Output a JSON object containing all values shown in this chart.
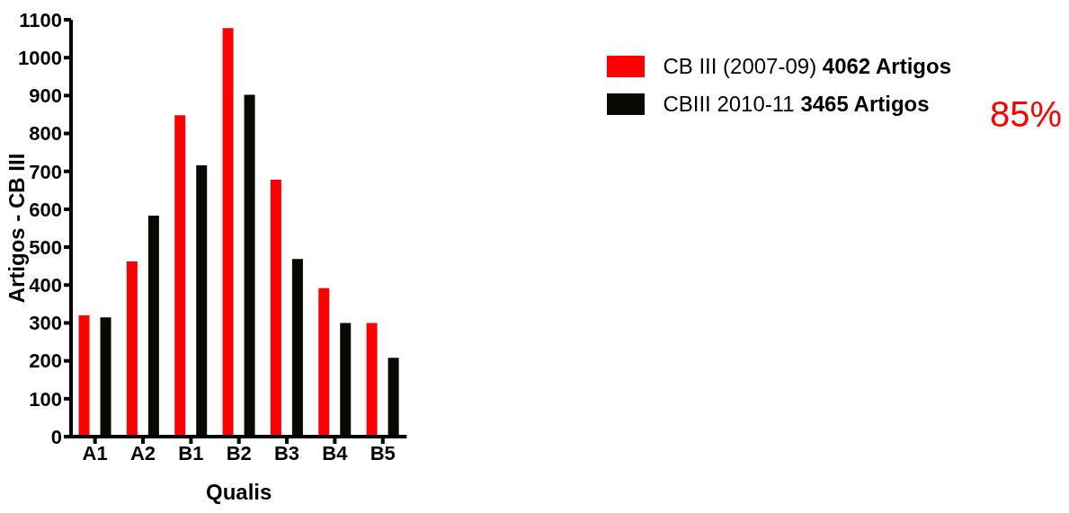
{
  "chart_data": {
    "type": "bar",
    "xlabel": "Qualis",
    "ylabel": "Artigos - CB III",
    "categories": [
      "A1",
      "A2",
      "B1",
      "B2",
      "B3",
      "B4",
      "B5"
    ],
    "series": [
      {
        "name": "CB III (2007-09) 4062 Artigos",
        "color": "#ff0000",
        "values": [
          320,
          462,
          848,
          1078,
          678,
          392,
          300
        ]
      },
      {
        "name": "CBIII 2010-11 3465 Artigos",
        "color": "#0a0804",
        "values": [
          315,
          583,
          716,
          902,
          469,
          300,
          208
        ]
      }
    ],
    "ylim": [
      0,
      1100
    ],
    "yticks": [
      0,
      100,
      200,
      300,
      400,
      500,
      600,
      700,
      800,
      900,
      1000,
      1100
    ],
    "grid": false,
    "legend": "top right",
    "annotations": [
      "85%"
    ]
  }
}
